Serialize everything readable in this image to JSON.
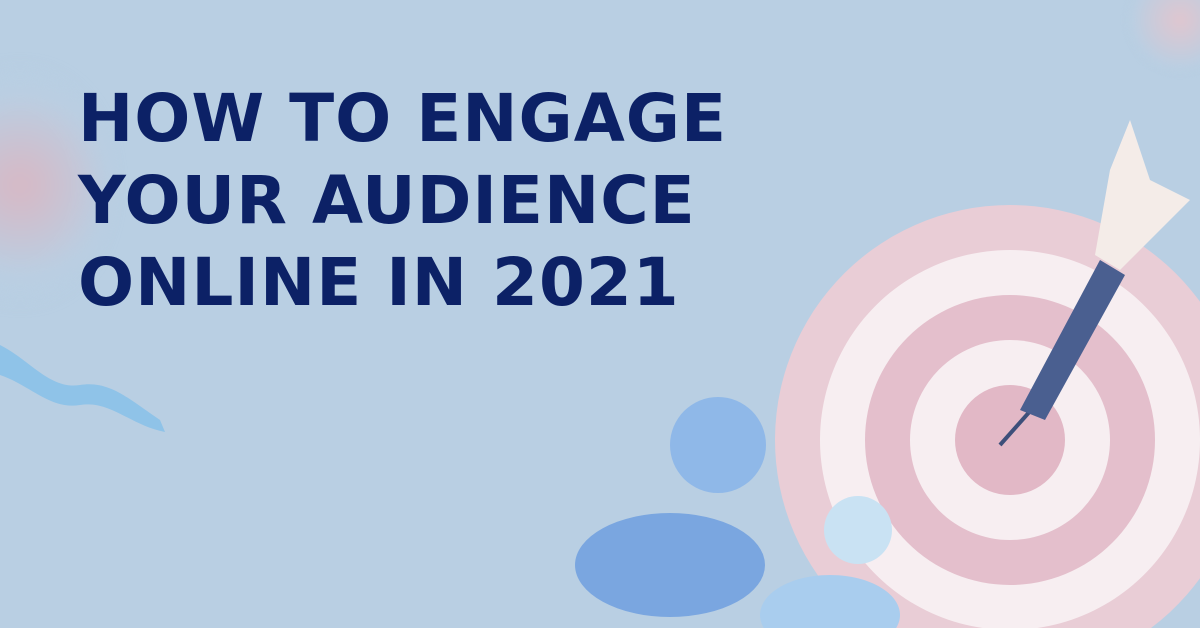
{
  "headline": {
    "lines": [
      "HOW TO ENGAGE",
      "YOUR AUDIENCE",
      "ONLINE IN 2021"
    ]
  },
  "colors": {
    "background": "#b9cfe3",
    "headline": "#0c2166",
    "target": "#e9c9d4"
  }
}
